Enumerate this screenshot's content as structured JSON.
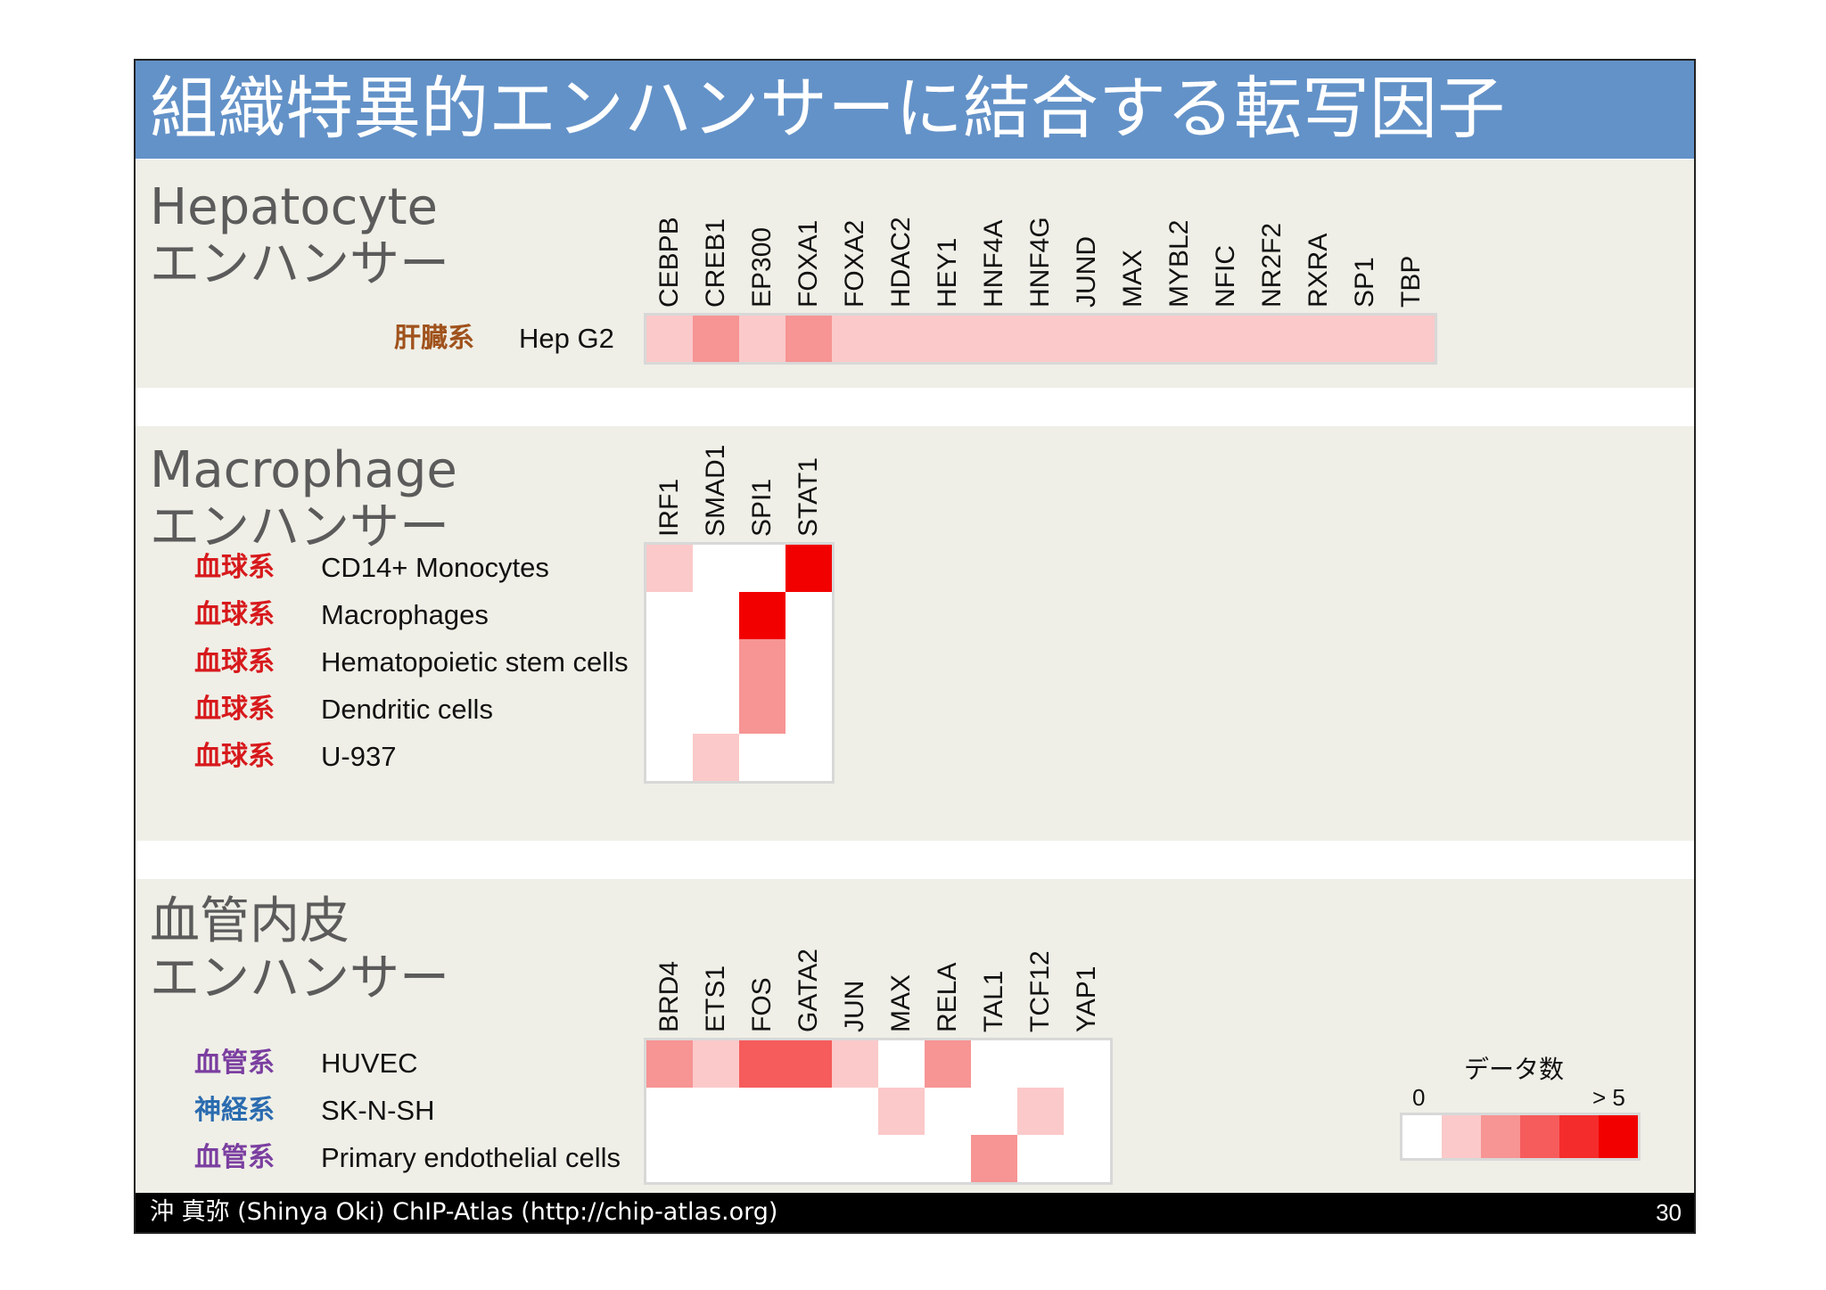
{
  "title": "組織特異的エンハンサーに結合する転写因子",
  "colors": {
    "title_bar": "#6392c8",
    "panel_bg": "#efefe7",
    "scale": [
      "#ffffff",
      "#fbc9c9",
      "#f79494",
      "#f65c5c",
      "#f52c2c",
      "#f20000"
    ],
    "system_liver": "#a0521c",
    "system_blood": "#d7191c",
    "system_vessel": "#7b3fa0",
    "system_neural": "#2b6cb0"
  },
  "chart_data": [
    {
      "type": "heatmap",
      "title": "Hepatocyte\nエンハンサー",
      "columns": [
        "CEBPB",
        "CREB1",
        "EP300",
        "FOXA1",
        "FOXA2",
        "HDAC2",
        "HEY1",
        "HNF4A",
        "HNF4G",
        "JUND",
        "MAX",
        "MYBL2",
        "NFIC",
        "NR2F2",
        "RXRA",
        "SP1",
        "TBP"
      ],
      "rows": [
        {
          "system": "肝臓系",
          "system_color": "#a0521c",
          "name": "Hep G2",
          "values": [
            1,
            2,
            1,
            2,
            1,
            1,
            1,
            1,
            1,
            1,
            1,
            1,
            1,
            1,
            1,
            1,
            1
          ]
        }
      ]
    },
    {
      "type": "heatmap",
      "title": "Macrophage\nエンハンサー",
      "columns": [
        "IRF1",
        "SMAD1",
        "SPI1",
        "STAT1"
      ],
      "rows": [
        {
          "system": "血球系",
          "system_color": "#d7191c",
          "name": "CD14+ Monocytes",
          "values": [
            1,
            0,
            0,
            5
          ]
        },
        {
          "system": "血球系",
          "system_color": "#d7191c",
          "name": "Macrophages",
          "values": [
            0,
            0,
            5,
            0
          ]
        },
        {
          "system": "血球系",
          "system_color": "#d7191c",
          "name": "Hematopoietic stem cells",
          "values": [
            0,
            0,
            2,
            0
          ]
        },
        {
          "system": "血球系",
          "system_color": "#d7191c",
          "name": "Dendritic cells",
          "values": [
            0,
            0,
            2,
            0
          ]
        },
        {
          "system": "血球系",
          "system_color": "#d7191c",
          "name": "U-937",
          "values": [
            0,
            1,
            0,
            0
          ]
        }
      ]
    },
    {
      "type": "heatmap",
      "title": "血管内皮\nエンハンサー",
      "columns": [
        "BRD4",
        "ETS1",
        "FOS",
        "GATA2",
        "JUN",
        "MAX",
        "RELA",
        "TAL1",
        "TCF12",
        "YAP1"
      ],
      "rows": [
        {
          "system": "血管系",
          "system_color": "#7b3fa0",
          "name": "HUVEC",
          "values": [
            2,
            1,
            3,
            3,
            1,
            0,
            2,
            0,
            0,
            0
          ]
        },
        {
          "system": "神経系",
          "system_color": "#2b6cb0",
          "name": "SK-N-SH",
          "values": [
            0,
            0,
            0,
            0,
            0,
            1,
            0,
            0,
            1,
            0
          ]
        },
        {
          "system": "血管系",
          "system_color": "#7b3fa0",
          "name": "Primary endothelial cells",
          "values": [
            0,
            0,
            0,
            0,
            0,
            0,
            0,
            2,
            0,
            0
          ]
        }
      ]
    }
  ],
  "legend": {
    "title": "データ数",
    "min_label": "0",
    "max_label": "> 5",
    "levels": [
      0,
      1,
      2,
      3,
      4,
      5
    ]
  },
  "footer": {
    "text": "沖 真弥 (Shinya Oki)    ChIP-Atlas (http://chip-atlas.org)",
    "page": "30"
  }
}
